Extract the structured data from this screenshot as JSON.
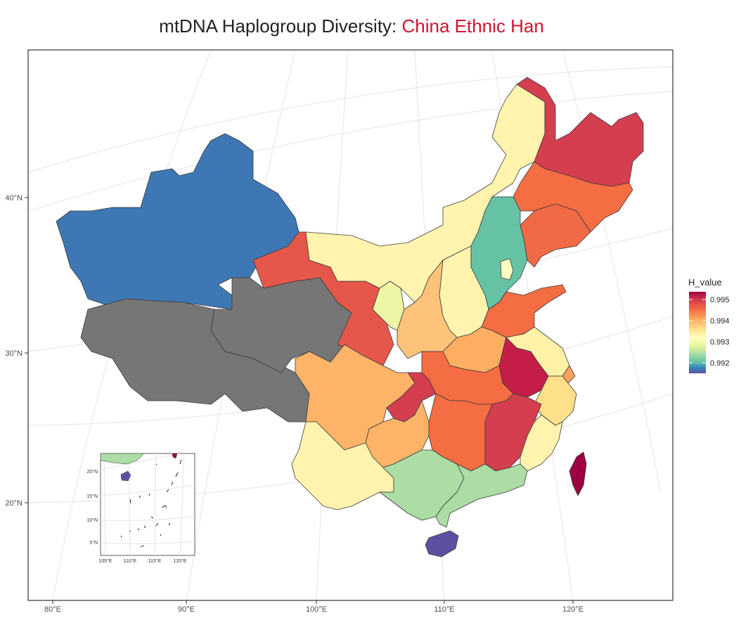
{
  "title": {
    "main": "mtDNA Haplogroup Diversity: ",
    "highlight": "China Ethnic Han"
  },
  "colors": {
    "highlight": "#d0122e",
    "no_data": "#767676",
    "scale": [
      "#5e4fa2",
      "#3288bd",
      "#66c2a5",
      "#abdda4",
      "#e6f598",
      "#ffffbf",
      "#fee08b",
      "#fdae61",
      "#f46d43",
      "#d53e4f",
      "#9e0142"
    ]
  },
  "axes": {
    "x_ticks": [
      "80°E",
      "90°E",
      "100°E",
      "110°E",
      "120°E"
    ],
    "y_ticks": [
      "40°N",
      "30°N",
      "20°N"
    ]
  },
  "legend": {
    "title": "H_value",
    "labels": [
      "0.995",
      "0.994",
      "0.993",
      "0.992"
    ]
  },
  "inset": {
    "x_ticks": [
      "105°E",
      "110°E",
      "115°E",
      "120°E"
    ],
    "y_ticks": [
      "20°N",
      "15°N",
      "10°N",
      "5°N"
    ]
  },
  "regions": [
    {
      "name": "Xinjiang",
      "fill": "#3e78b4"
    },
    {
      "name": "Tibet",
      "fill": "#767676"
    },
    {
      "name": "Qinghai",
      "fill": "#767676"
    },
    {
      "name": "Gansu",
      "fill": "#e5574a"
    },
    {
      "name": "Inner Mongolia",
      "fill": "#fff3ae"
    },
    {
      "name": "Ningxia",
      "fill": "#eef6a6"
    },
    {
      "name": "Shaanxi",
      "fill": "#d53e4f"
    },
    {
      "name": "Shanxi",
      "fill": "#f46d43"
    },
    {
      "name": "Hebei",
      "fill": "#f06a45"
    },
    {
      "name": "Beijing",
      "fill": "#66c2a5"
    },
    {
      "name": "Heilongjiang",
      "fill": "#ffffbf"
    },
    {
      "name": "Jilin",
      "fill": "#fff3ae"
    },
    {
      "name": "Liaoning",
      "fill": "#fdc37a"
    },
    {
      "name": "Shandong",
      "fill": "#fdae61"
    },
    {
      "name": "Henan",
      "fill": "#f46d43"
    },
    {
      "name": "Jiangsu",
      "fill": "#fff2a6"
    },
    {
      "name": "Anhui",
      "fill": "#c41e48"
    },
    {
      "name": "Zhejiang",
      "fill": "#f9a05c"
    },
    {
      "name": "Shanghai",
      "fill": "#fee08b"
    },
    {
      "name": "Hubei",
      "fill": "#f46d43"
    },
    {
      "name": "Sichuan",
      "fill": "#fdb468"
    },
    {
      "name": "Chongqing",
      "fill": "#d53e4f"
    },
    {
      "name": "Guizhou",
      "fill": "#fdb468"
    },
    {
      "name": "Yunnan",
      "fill": "#fff3ae"
    },
    {
      "name": "Hunan",
      "fill": "#f46d43"
    },
    {
      "name": "Jiangxi",
      "fill": "#d53e4f"
    },
    {
      "name": "Fujian",
      "fill": "#fff3ae"
    },
    {
      "name": "Guangxi",
      "fill": "#abdda4"
    },
    {
      "name": "Guangdong",
      "fill": "#abdda4"
    },
    {
      "name": "Hainan",
      "fill": "#5e4fa2"
    },
    {
      "name": "Taiwan",
      "fill": "#9e0142"
    }
  ]
}
